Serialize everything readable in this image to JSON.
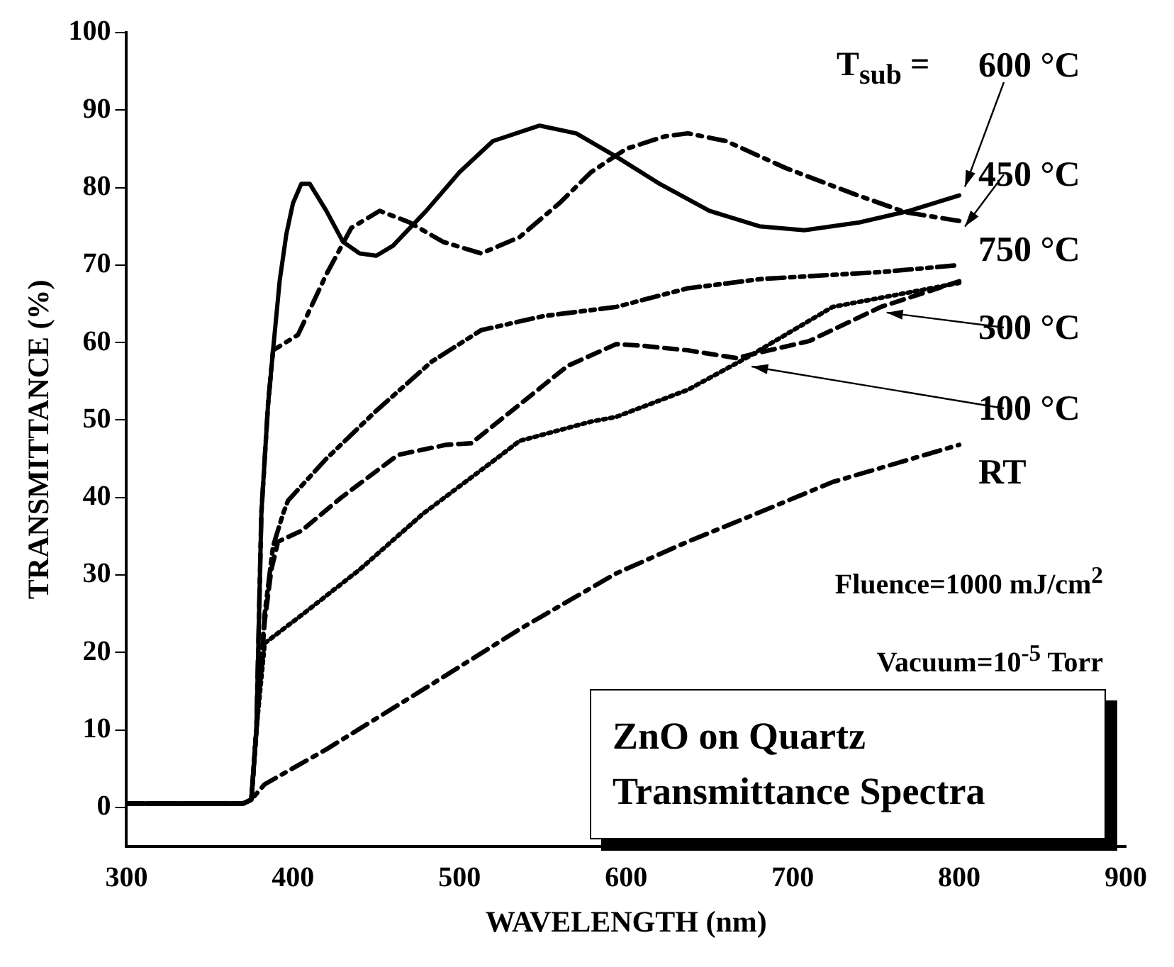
{
  "chart_data": {
    "type": "line",
    "title": "ZnO on Quartz Transmittance Spectra",
    "xlabel": "WAVELENGTH (nm)",
    "ylabel": "TRANSMITTANCE (%)",
    "legend_title": "T$_{sub}$ =",
    "annotations": [
      "Fluence=1000 mJ/cm$^{2}$",
      "Vacuum=10$^{-5}$ Torr"
    ],
    "xlim": [
      300,
      900
    ],
    "xticks": [
      300,
      400,
      500,
      600,
      700,
      800,
      900
    ],
    "ylim": [
      -5,
      100
    ],
    "yticks": [
      0,
      10,
      20,
      30,
      40,
      50,
      60,
      70,
      80,
      90,
      100
    ],
    "grid": false,
    "legend": "right",
    "marker": "none",
    "series": [
      {
        "name": "600 °C",
        "color": "#000000",
        "line_style": "solid",
        "x": [
          300,
          330,
          360,
          370,
          375,
          378,
          381,
          385,
          388,
          392,
          396,
          400,
          405,
          410,
          420,
          430,
          440,
          450,
          460,
          480,
          500,
          520,
          548,
          570,
          594,
          620,
          650,
          680,
          707,
          740,
          770,
          800
        ],
        "values": [
          0.5,
          0.5,
          0.5,
          0.5,
          1,
          10,
          38,
          52,
          59,
          68,
          74,
          78,
          80.5,
          80.5,
          77,
          73,
          71.5,
          71.2,
          72.5,
          77,
          82,
          86,
          88,
          87,
          84,
          80.5,
          77,
          75,
          74.5,
          75.5,
          77,
          79
        ]
      },
      {
        "name": "450 °C",
        "color": "#000000",
        "line_style": "dashdot",
        "x": [
          300,
          360,
          370,
          375,
          378,
          381,
          385,
          388,
          403,
          420,
          435,
          452,
          470,
          490,
          513,
          536,
          560,
          579,
          600,
          623,
          637,
          660,
          696,
          739,
          768,
          800
        ],
        "values": [
          0.5,
          0.5,
          0.5,
          1,
          10,
          38,
          52,
          59,
          61,
          68.8,
          74.8,
          77,
          75.5,
          73,
          71.5,
          73.6,
          78,
          82,
          85,
          86.6,
          87,
          86,
          82.5,
          79,
          76.8,
          75.7
        ]
      },
      {
        "name": "750 °C",
        "color": "#000000",
        "line_style": "dashdotdot",
        "x": [
          300,
          360,
          370,
          375,
          378,
          383,
          388,
          394,
          397,
          420,
          449,
          483,
          513,
          550,
          594,
          637,
          681,
          753,
          800
        ],
        "values": [
          0.5,
          0.5,
          0.5,
          1,
          10,
          25,
          33.7,
          37.9,
          39.6,
          45,
          51,
          57.5,
          61.6,
          63.4,
          64.6,
          67,
          68.2,
          69.1,
          70
        ]
      },
      {
        "name": "300 °C",
        "color": "#000000",
        "line_style": "dashed",
        "x": [
          300,
          360,
          370,
          375,
          378,
          383,
          387,
          391,
          405,
          429,
          463,
          492,
          507,
          536,
          565,
          594,
          609,
          637,
          666,
          710,
          753,
          800
        ],
        "values": [
          0.5,
          0.5,
          0.5,
          1,
          10,
          24,
          30.7,
          34.3,
          35.7,
          40,
          45.5,
          46.8,
          47,
          52,
          57,
          59.8,
          59.6,
          59,
          58,
          60.2,
          64.6,
          67.9
        ]
      },
      {
        "name": "100 °C",
        "color": "#000000",
        "line_style": "dotted",
        "x": [
          300,
          360,
          370,
          375,
          378,
          383,
          405,
          440,
          478,
          522,
          536,
          579,
          594,
          637,
          672,
          724,
          800
        ],
        "values": [
          0.5,
          0.5,
          0.5,
          1,
          10,
          21.2,
          24.8,
          30.7,
          37.9,
          45,
          47.3,
          49.8,
          50.4,
          53.9,
          58,
          64.6,
          67.7
        ]
      },
      {
        "name": "RT",
        "color": "#000000",
        "line_style": "dashdot",
        "x": [
          300,
          360,
          370,
          375,
          383,
          420,
          478,
          536,
          594,
          637,
          678,
          724,
          800
        ],
        "values": [
          0.5,
          0.5,
          0.5,
          1,
          3,
          7.5,
          15.2,
          23,
          30.2,
          34.3,
          37.9,
          42,
          46.8
        ]
      }
    ]
  }
}
